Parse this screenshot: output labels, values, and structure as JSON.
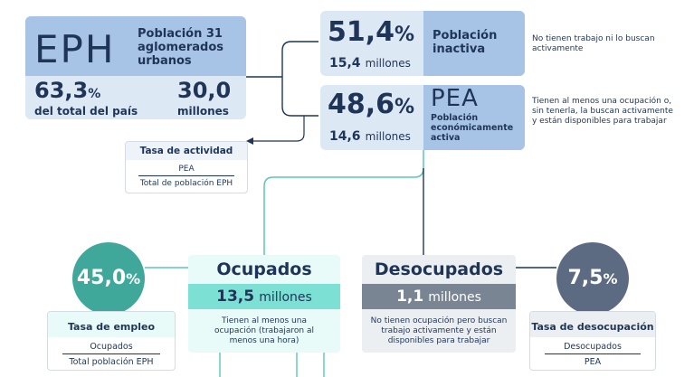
{
  "eph": {
    "logo": "EPH",
    "title": "Población 31 aglomerados urbanos",
    "pct_value": "63,3",
    "pct_symbol": "%",
    "pct_caption": "del total del país",
    "abs_value": "30,0",
    "abs_caption": "millones"
  },
  "inactiva": {
    "pct_value": "51,4",
    "pct_symbol": "%",
    "millions_value": "15,4",
    "millions_unit": "millones",
    "label": "Población inactiva",
    "note": "No tienen trabajo ni lo buscan activamente"
  },
  "pea": {
    "pct_value": "48,6",
    "pct_symbol": "%",
    "millions_value": "14,6",
    "millions_unit": "millones",
    "abbr": "PEA",
    "label": "Población económicamente activa",
    "note": "Tienen al menos una ocupación o, sin tenerla, la buscan activamente y están disponibles para trabajar"
  },
  "tasa_actividad": {
    "title": "Tasa de actividad",
    "numerator": "PEA",
    "denominator": "Total de población EPH"
  },
  "ocupados": {
    "title": "Ocupados",
    "millions_value": "13,5",
    "millions_unit": "millones",
    "note": "Tienen al menos una ocupación (trabajaron al menos una hora)"
  },
  "desocupados": {
    "title": "Desocupados",
    "millions_value": "1,1",
    "millions_unit": "millones",
    "note": "No tienen ocupación pero buscan trabajo activamente y están disponibles para trabajar"
  },
  "tasa_empleo": {
    "value": "45,0",
    "symbol": "%",
    "title": "Tasa de empleo",
    "numerator": "Ocupados",
    "denominator": "Total población EPH"
  },
  "tasa_desocupacion": {
    "value": "7,5",
    "symbol": "%",
    "title": "Tasa de desocupación",
    "numerator": "Desocupados",
    "denominator": "PEA"
  },
  "colors": {
    "navy": "#1f3557",
    "light_blue": "#dde8f5",
    "mid_blue": "#a7c3e6",
    "teal": "#3fa89a",
    "mint": "#e9fbf8",
    "mint_bar": "#7de0d4",
    "grey_light": "#eceff2",
    "grey_bar": "#7a8594",
    "slate_circle": "#5d6b82",
    "connector": "#1f3557",
    "teal_line": "#5cc6b6"
  }
}
